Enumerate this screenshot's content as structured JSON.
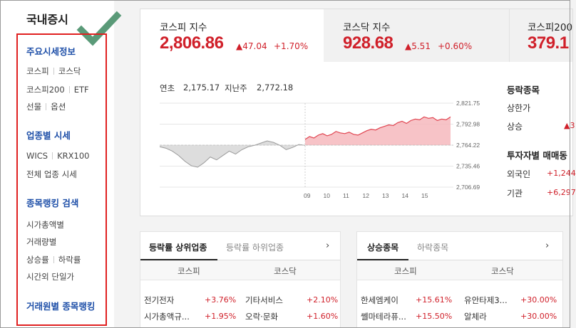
{
  "sidebar": {
    "title": "국내증시",
    "groups": [
      {
        "title": "주요시세정보",
        "rows": [
          [
            "코스피",
            "코스닥"
          ],
          [
            "코스피200",
            "ETF"
          ],
          [
            "선물",
            "옵션"
          ]
        ]
      },
      {
        "title": "업종별 시세",
        "rows": [
          [
            "WICS",
            "KRX100"
          ],
          [
            "전체 업종 시세"
          ]
        ]
      },
      {
        "title": "종목랭킹 검색",
        "rows": [
          [
            "시가총액별"
          ],
          [
            "거래량별"
          ],
          [
            "상승률",
            "하락률"
          ],
          [
            "시간외 단일가"
          ]
        ]
      },
      {
        "title": "거래원별 종목랭킹",
        "rows": []
      }
    ]
  },
  "indices": [
    {
      "name": "코스피 지수",
      "value": "2,806.86",
      "change": "▲47.04",
      "pct": "+1.70%"
    },
    {
      "name": "코스닥 지수",
      "value": "928.68",
      "change": "▲5.51",
      "pct": "+0.60%"
    },
    {
      "name": "코스피200",
      "value": "379.1",
      "change": "",
      "pct": ""
    }
  ],
  "stats": {
    "low_label": "연초",
    "low_value": "2,175.17",
    "prev_label": "지난주",
    "prev_value": "2,772.18"
  },
  "chart_data": {
    "type": "area",
    "y_ticks": [
      "2,821.75",
      "2,792.98",
      "2,764.22",
      "2,735.46",
      "2,706.69"
    ],
    "x_ticks": [
      "09",
      "10",
      "11",
      "12",
      "13",
      "14",
      "15"
    ],
    "ylim": [
      2706.69,
      2821.75
    ],
    "baseline": 2764.22,
    "pre_open": [
      2762,
      2760,
      2756,
      2750,
      2742,
      2736,
      2734,
      2740,
      2748,
      2744,
      2750,
      2756,
      2752,
      2758,
      2762,
      2764,
      2767,
      2770,
      2768,
      2764,
      2758,
      2761,
      2765,
      2764
    ],
    "session": [
      2772,
      2776,
      2774,
      2778,
      2780,
      2777,
      2779,
      2783,
      2781,
      2780,
      2782,
      2779,
      2778,
      2781,
      2784,
      2786,
      2785,
      2788,
      2790,
      2792,
      2791,
      2795,
      2797,
      2794,
      2798,
      2800,
      2799,
      2803,
      2801,
      2802,
      2798,
      2800,
      2799,
      2803
    ]
  },
  "right": {
    "title1": "등락종목",
    "rows1": [
      {
        "label": "상한가",
        "value": ""
      },
      {
        "label": "상승",
        "value": "▲3"
      }
    ],
    "title2": "투자자별 매매동",
    "rows2": [
      {
        "label": "외국인",
        "value": "+1,244"
      },
      {
        "label": "기관",
        "value": "+6,297"
      }
    ]
  },
  "panel_left": {
    "tabs": [
      "등락률 상위업종",
      "등락률 하위업종"
    ],
    "chevron": "›",
    "cols": [
      "코스피",
      "코스닥"
    ],
    "rows": [
      {
        "a_name": "전기전자",
        "a_pct": "+3.76%",
        "b_name": "기타서비스",
        "b_pct": "+2.10%"
      },
      {
        "a_name": "시가총액규...",
        "a_pct": "+1.95%",
        "b_name": "오락·문화",
        "b_pct": "+1.60%"
      }
    ]
  },
  "panel_right": {
    "tabs": [
      "상승종목",
      "하락종목"
    ],
    "chevron": "›",
    "cols": [
      "코스피",
      "코스닥"
    ],
    "rows": [
      {
        "a_name": "한세엠케이",
        "a_pct": "+15.61%",
        "b_name": "유안타제3...",
        "b_pct": "+30.00%"
      },
      {
        "a_name": "쎌마테라퓨...",
        "a_pct": "+15.50%",
        "b_name": "알체라",
        "b_pct": "+30.00%"
      }
    ]
  },
  "colors": {
    "up": "#d0202a",
    "link": "#1e4fa8",
    "check": "#5a9a78",
    "box": "#e02020"
  }
}
